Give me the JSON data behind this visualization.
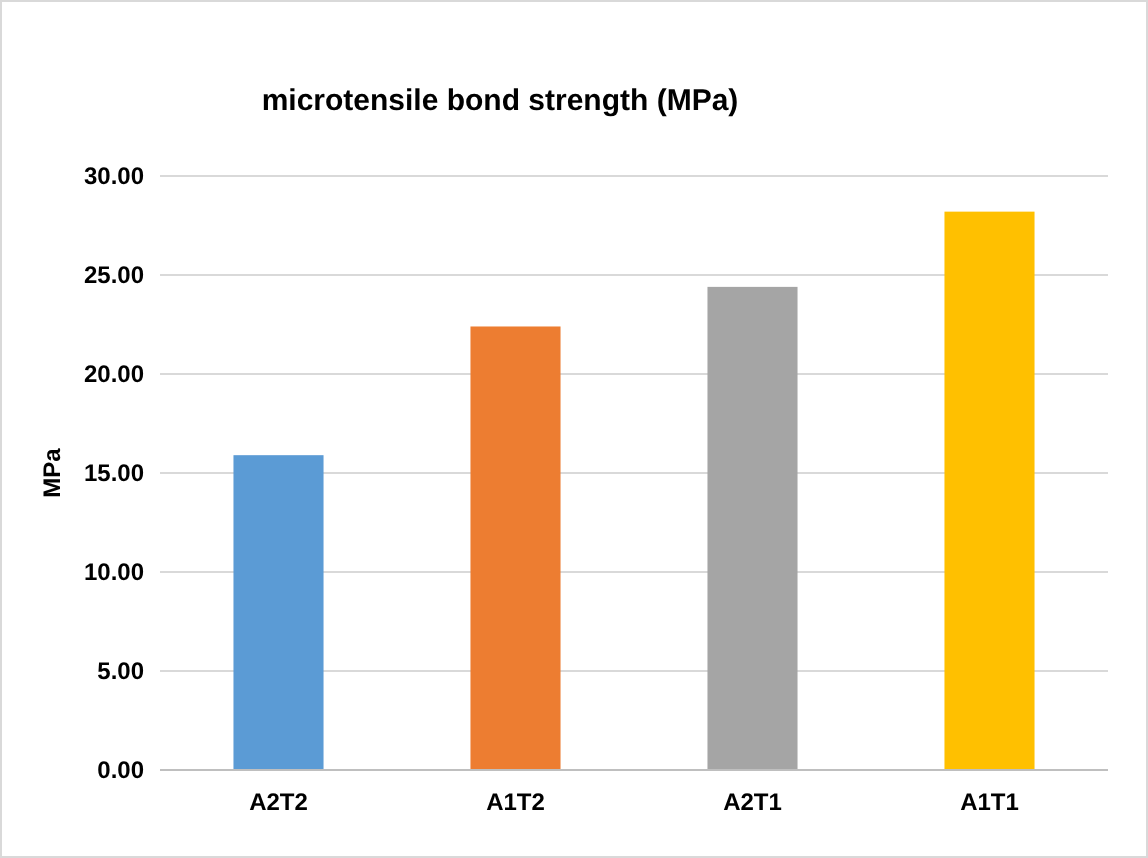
{
  "chart_data": {
    "type": "bar",
    "title": "microtensile bond strength (MPa)",
    "ylabel": "MPa",
    "categories": [
      "A2T2",
      "A1T2",
      "A2T1",
      "A1T1"
    ],
    "values": [
      15.9,
      22.4,
      24.4,
      28.2
    ],
    "colors": [
      "#5b9bd5",
      "#ed7d31",
      "#a5a5a5",
      "#ffc000"
    ],
    "ylim": [
      0,
      30
    ],
    "yticks": [
      {
        "value": 0,
        "label": "0.00"
      },
      {
        "value": 5,
        "label": "5.00"
      },
      {
        "value": 10,
        "label": "10.00"
      },
      {
        "value": 15,
        "label": "15.00"
      },
      {
        "value": 20,
        "label": "20.00"
      },
      {
        "value": 25,
        "label": "25.00"
      },
      {
        "value": 30,
        "label": "30.00"
      }
    ],
    "grid": "y"
  }
}
